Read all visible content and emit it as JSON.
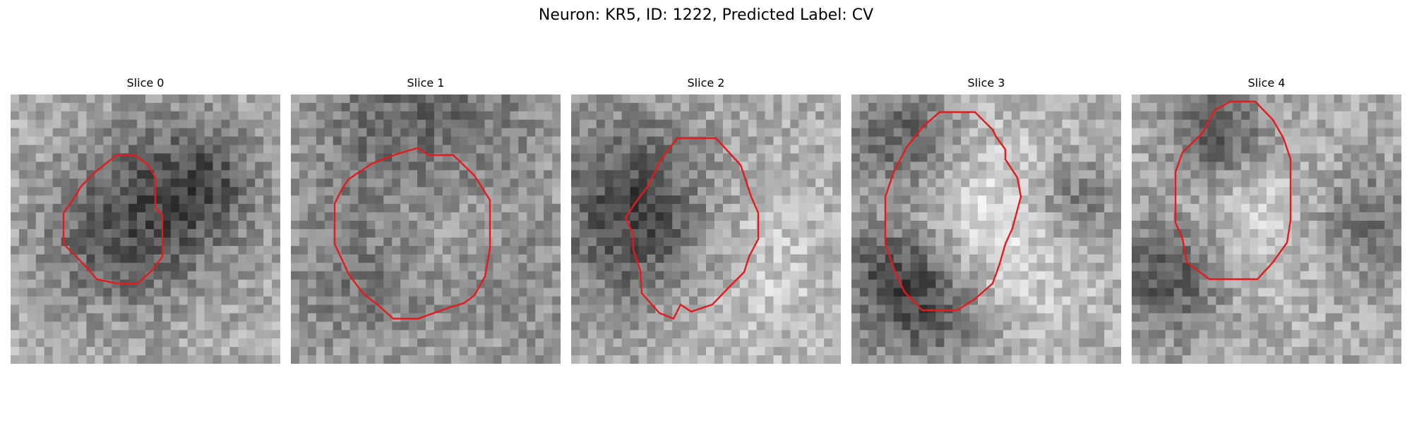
{
  "figure": {
    "title": "Neuron: KR5, ID: 1222, Predicted Label: CV"
  },
  "panels": [
    {
      "title": "Slice 0",
      "image": "grayscale-microscopy-slice",
      "contour_color": "#e41a1c"
    },
    {
      "title": "Slice 1",
      "image": "grayscale-microscopy-slice",
      "contour_color": "#e41a1c"
    },
    {
      "title": "Slice 2",
      "image": "grayscale-microscopy-slice",
      "contour_color": "#e41a1c"
    },
    {
      "title": "Slice 3",
      "image": "grayscale-microscopy-slice",
      "contour_color": "#e41a1c"
    },
    {
      "title": "Slice 4",
      "image": "grayscale-microscopy-slice",
      "contour_color": "#e41a1c"
    }
  ]
}
